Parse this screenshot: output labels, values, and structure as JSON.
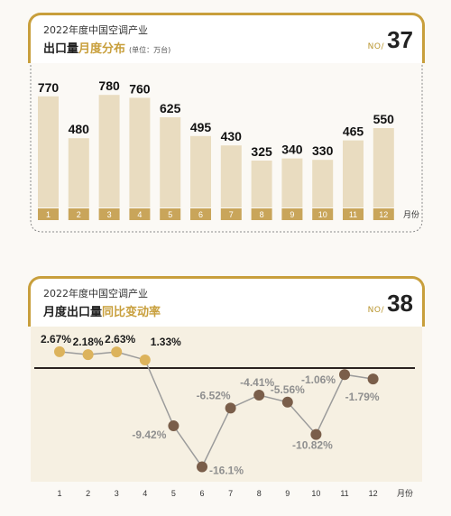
{
  "panel1": {
    "small_title": "2022年度中国空调产业",
    "title_main": "出口量",
    "title_accent": "月度分布",
    "unit": "(单位：万台)",
    "no_label": "NO/",
    "no_num": "37"
  },
  "panel2": {
    "small_title": "2022年度中国空调产业",
    "title_main": "月度出口量",
    "title_accent": "同比变动率",
    "no_label": "NO/",
    "no_num": "38"
  },
  "colors": {
    "gold": "#c89f3c",
    "bar_fill": "#e9dcc0",
    "label_box": "#c9a55a",
    "positive_dot": "#dcb35c",
    "negative_dot": "#7a5e4a",
    "line": "#9b9b9b"
  },
  "chart_data": [
    {
      "type": "bar",
      "categories": [
        "1",
        "2",
        "3",
        "4",
        "5",
        "6",
        "7",
        "8",
        "9",
        "10",
        "11",
        "12"
      ],
      "values": [
        770,
        480,
        780,
        760,
        625,
        495,
        430,
        325,
        340,
        330,
        465,
        550
      ],
      "xlabel": "月份",
      "ylim": [
        0,
        800
      ]
    },
    {
      "type": "line",
      "categories": [
        "1",
        "2",
        "3",
        "4",
        "5",
        "6",
        "7",
        "8",
        "9",
        "10",
        "11",
        "12"
      ],
      "values": [
        2.67,
        2.18,
        2.63,
        1.33,
        -9.42,
        -16.1,
        -6.52,
        -4.41,
        -5.56,
        -10.82,
        -1.06,
        -1.79
      ],
      "labels": [
        "2.67%",
        "2.18%",
        "2.63%",
        "1.33%",
        "-9.42%",
        "-16.1%",
        "-6.52%",
        "-4.41%",
        "-5.56%",
        "-10.82%",
        "-1.06%",
        "-1.79%"
      ],
      "xlabel": "月份",
      "ylim": [
        -18,
        5
      ]
    }
  ]
}
